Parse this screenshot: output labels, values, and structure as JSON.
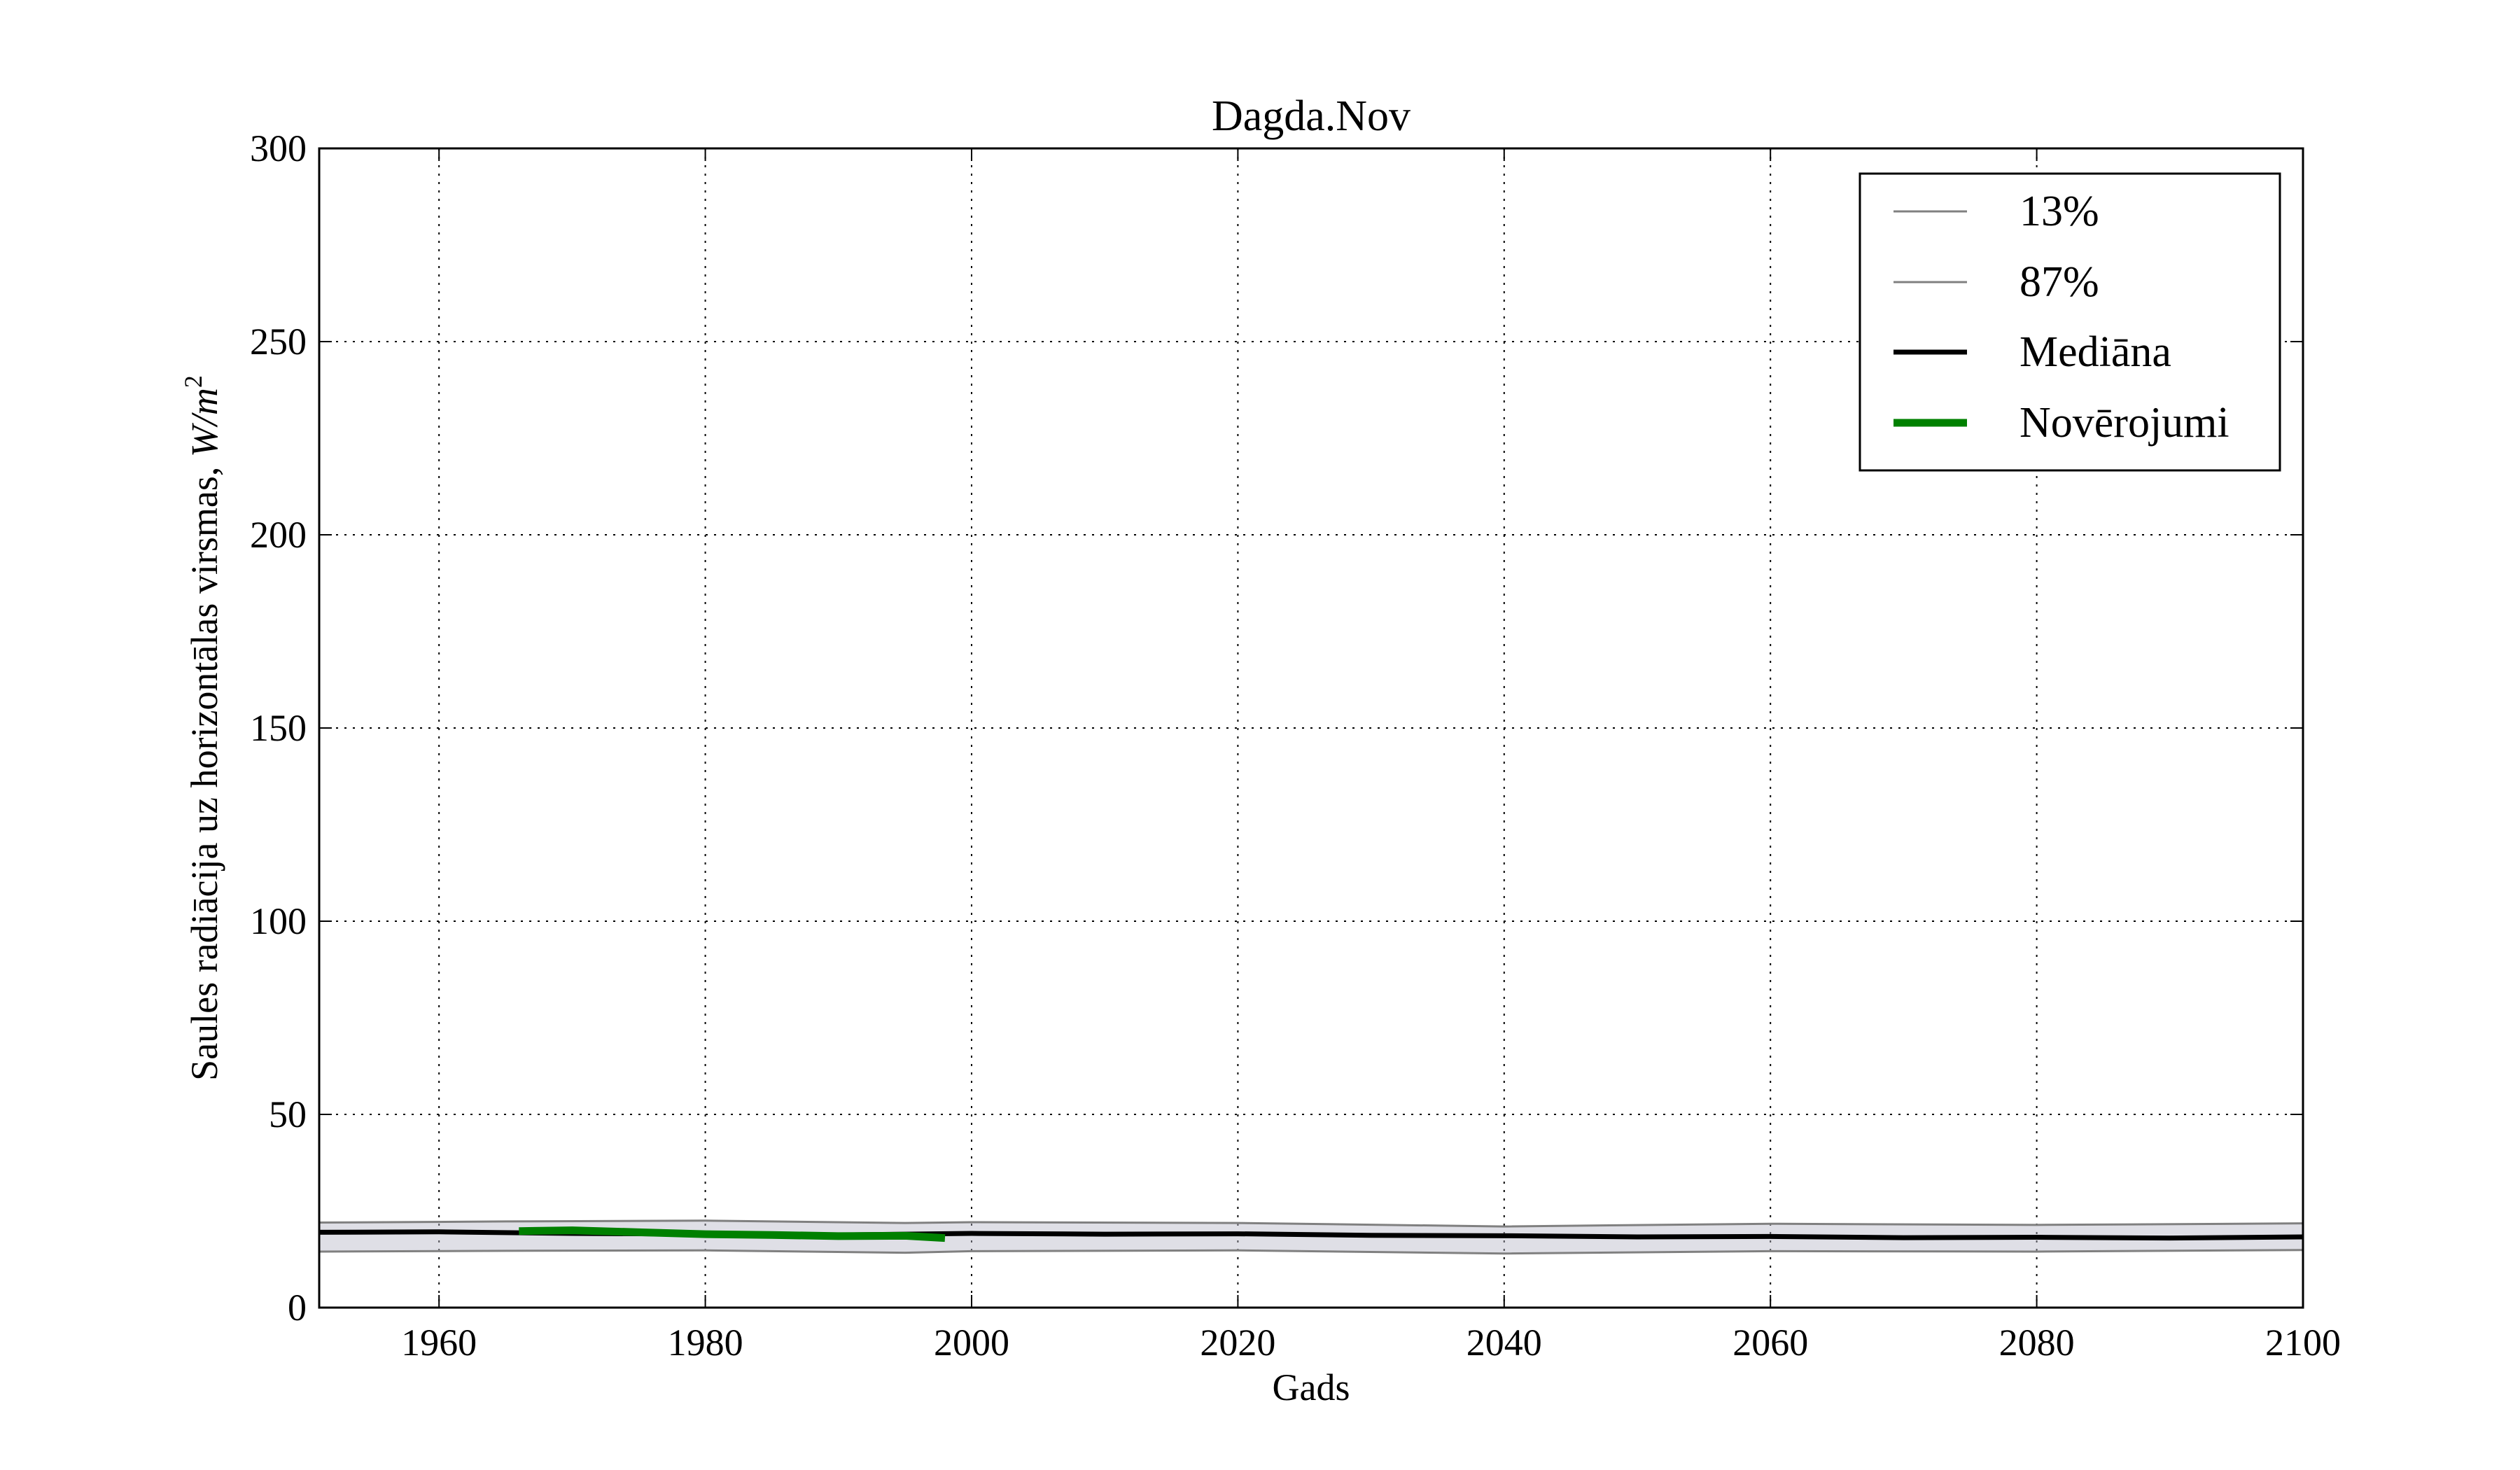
{
  "chart_data": {
    "type": "line",
    "title": "Dagda.Nov",
    "xlabel": "Gads",
    "ylabel": "Saules radiācija uz horizontālas virsmas, W/m²",
    "ylabel_main": "Saules radiācija uz horizontālas virsmas, ",
    "ylabel_unit": "W/m",
    "ylabel_exp": "2",
    "xlim": [
      1951,
      2100
    ],
    "ylim": [
      0,
      300
    ],
    "xticks": [
      1960,
      1980,
      2000,
      2020,
      2040,
      2060,
      2080,
      2100
    ],
    "yticks": [
      0,
      50,
      100,
      150,
      200,
      250,
      300
    ],
    "grid": true,
    "legend_position": "top-right",
    "ensemble_band_color": "#b8b8c8",
    "series": [
      {
        "name": "13%",
        "color": "#808080",
        "x": [
          1951,
          1965,
          1980,
          1995,
          2000,
          2020,
          2040,
          2060,
          2080,
          2100
        ],
        "y": [
          14.5,
          14.7,
          14.8,
          14.2,
          14.6,
          14.8,
          14.0,
          14.6,
          14.5,
          14.9
        ]
      },
      {
        "name": "87%",
        "color": "#808080",
        "x": [
          1951,
          1965,
          1980,
          1995,
          2000,
          2020,
          2040,
          2060,
          2080,
          2100
        ],
        "y": [
          22.0,
          22.3,
          22.5,
          21.9,
          22.1,
          21.9,
          21.0,
          21.7,
          21.4,
          21.8
        ]
      },
      {
        "name": "Mediāna",
        "color": "#000000",
        "x": [
          1951,
          1960,
          1970,
          1980,
          1990,
          2000,
          2010,
          2020,
          2030,
          2040,
          2050,
          2060,
          2070,
          2080,
          2090,
          2100
        ],
        "y": [
          19.5,
          19.6,
          19.2,
          19.0,
          18.8,
          19.2,
          19.0,
          19.1,
          18.7,
          18.6,
          18.3,
          18.4,
          18.1,
          18.2,
          18.0,
          18.3
        ]
      },
      {
        "name": "Novērojumi",
        "color": "#008000",
        "x": [
          1966,
          1970,
          1975,
          1980,
          1985,
          1990,
          1995,
          1998
        ],
        "y": [
          19.8,
          20.0,
          19.5,
          19.0,
          18.8,
          18.5,
          18.6,
          18.0
        ]
      }
    ]
  }
}
